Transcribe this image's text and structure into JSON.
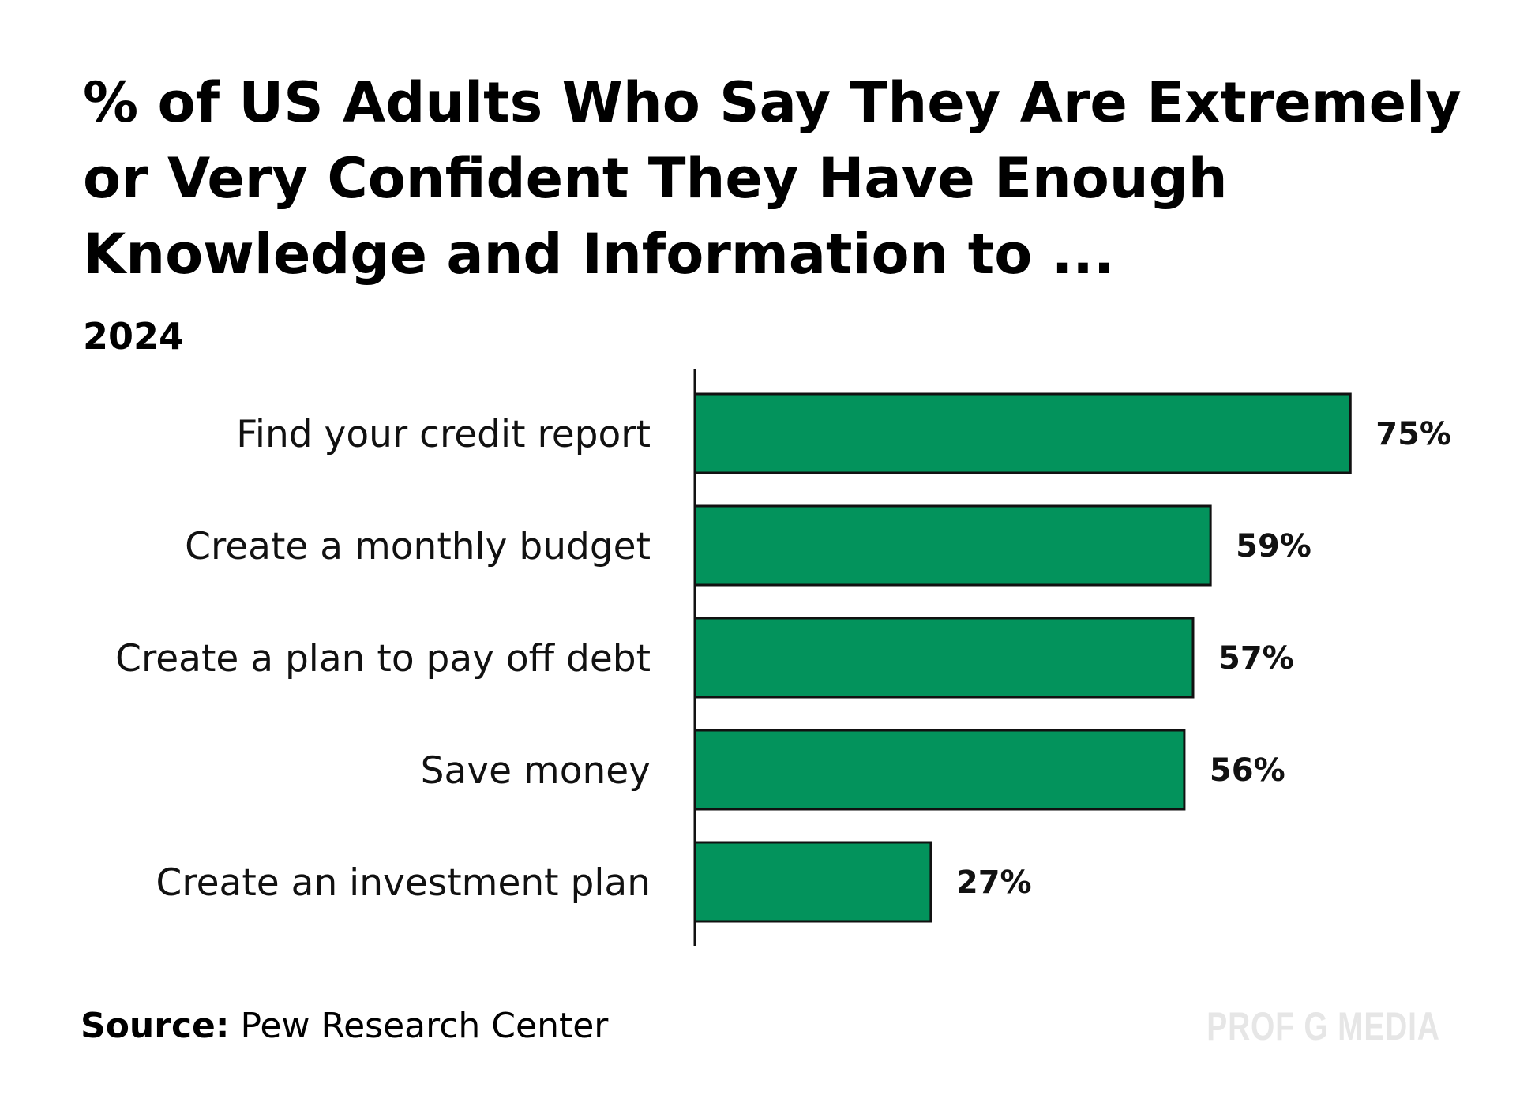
{
  "chart_data": {
    "type": "bar",
    "orientation": "horizontal",
    "title": "% of US Adults Who Say They Are Extremely or Very Confident They Have Enough Knowledge and Information to ...",
    "subtitle": "2024",
    "categories": [
      "Find your credit report",
      "Create a monthly budget",
      "Create a plan to pay off debt",
      "Save money",
      "Create an investment plan"
    ],
    "values": [
      75,
      59,
      57,
      56,
      27
    ],
    "value_labels": [
      "75%",
      "59%",
      "57%",
      "56%",
      "27%"
    ],
    "xlim": [
      0,
      100
    ],
    "grid": false,
    "legend": "none",
    "colors": {
      "bar_fill": "#03935c",
      "bar_stroke": "#111111",
      "axis": "#111111"
    }
  },
  "source": {
    "label": "Source:",
    "text": "Pew Research Center"
  },
  "brand": {
    "logo_text": "PROF G MEDIA"
  }
}
